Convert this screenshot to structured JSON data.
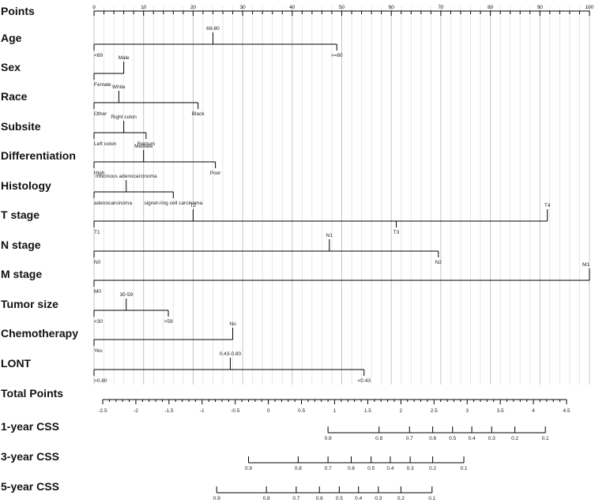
{
  "chart_data": {
    "type": "nomogram",
    "points_axis": {
      "label": "Points",
      "range": [
        0,
        100
      ],
      "ticks": [
        "0",
        "10",
        "20",
        "30",
        "40",
        "50",
        "60",
        "70",
        "80",
        "90",
        "100"
      ]
    },
    "variables": [
      {
        "label": "Age",
        "min_points": 0,
        "max_points": 49,
        "levels": [
          {
            "name": "<69",
            "points": 0,
            "side": "below"
          },
          {
            "name": "69-80",
            "points": 24,
            "side": "above"
          },
          {
            "name": ">=80",
            "points": 49,
            "side": "below"
          }
        ]
      },
      {
        "label": "Sex",
        "min_points": 0,
        "max_points": 6,
        "levels": [
          {
            "name": "Female",
            "points": 0,
            "side": "below"
          },
          {
            "name": "Male",
            "points": 6,
            "side": "above"
          }
        ]
      },
      {
        "label": "Race",
        "min_points": 0,
        "max_points": 21,
        "levels": [
          {
            "name": "Other",
            "points": 0,
            "side": "below"
          },
          {
            "name": "White",
            "points": 5,
            "side": "above"
          },
          {
            "name": "Black",
            "points": 21,
            "side": "below"
          }
        ]
      },
      {
        "label": "Subsite",
        "min_points": 0,
        "max_points": 10.5,
        "levels": [
          {
            "name": "Left colon",
            "points": 0,
            "side": "below"
          },
          {
            "name": "Right colon",
            "points": 6,
            "side": "above"
          },
          {
            "name": "Rectum",
            "points": 10.5,
            "side": "below"
          }
        ]
      },
      {
        "label": "Differentiation",
        "min_points": 0,
        "max_points": 24.5,
        "levels": [
          {
            "name": "High",
            "points": 0,
            "side": "below"
          },
          {
            "name": "Mediate",
            "points": 10,
            "side": "above"
          },
          {
            "name": "Poor",
            "points": 24.5,
            "side": "below"
          }
        ]
      },
      {
        "label": "Histology",
        "min_points": 0,
        "max_points": 16,
        "levels": [
          {
            "name": "adenocarcinoma",
            "points": 0,
            "side": "below"
          },
          {
            "name": "mucinous adenocarcinoma",
            "points": 6.5,
            "side": "above"
          },
          {
            "name": "signet-ring cell carcinoma",
            "points": 16,
            "side": "below"
          }
        ]
      },
      {
        "label": "T stage",
        "min_points": 0,
        "max_points": 91.5,
        "levels": [
          {
            "name": "T1",
            "points": 0,
            "side": "below"
          },
          {
            "name": "T2",
            "points": 20,
            "side": "above"
          },
          {
            "name": "T3",
            "points": 61,
            "side": "below"
          },
          {
            "name": "T4",
            "points": 91.5,
            "side": "above"
          }
        ]
      },
      {
        "label": "N stage",
        "min_points": 0,
        "max_points": 69.5,
        "levels": [
          {
            "name": "N0",
            "points": 0,
            "side": "below"
          },
          {
            "name": "N1",
            "points": 47.5,
            "side": "above"
          },
          {
            "name": "N2",
            "points": 69.5,
            "side": "below"
          }
        ]
      },
      {
        "label": "M stage",
        "min_points": 0,
        "max_points": 100,
        "levels": [
          {
            "name": "M0",
            "points": 0,
            "side": "below"
          },
          {
            "name": "M1",
            "points": 100,
            "side": "above"
          }
        ]
      },
      {
        "label": "Tumor size",
        "min_points": 0,
        "max_points": 15,
        "levels": [
          {
            "name": "<30",
            "points": 0,
            "side": "below"
          },
          {
            "name": "30-59",
            "points": 6.5,
            "side": "above"
          },
          {
            "name": ">59",
            "points": 15,
            "side": "below"
          }
        ]
      },
      {
        "label": "Chemotherapy",
        "min_points": 0,
        "max_points": 28,
        "levels": [
          {
            "name": "Yes",
            "points": 0,
            "side": "below"
          },
          {
            "name": "No",
            "points": 28,
            "side": "above"
          }
        ]
      },
      {
        "label": "LONT",
        "min_points": 0,
        "max_points": 54.5,
        "levels": [
          {
            "name": ">0.80",
            "points": 0,
            "side": "below"
          },
          {
            "name": "0.43-0.80",
            "points": 27.5,
            "side": "above"
          },
          {
            "name": "<0.43",
            "points": 54.5,
            "side": "below"
          }
        ]
      }
    ],
    "total_points_axis": {
      "label": "Total Points",
      "range": [
        -2.5,
        4.5
      ],
      "ticks": [
        "-2.5",
        "-2",
        "-1.5",
        "-1",
        "-0.5",
        "0",
        "0.5",
        "1",
        "1.5",
        "2",
        "2.5",
        "3",
        "3.5",
        "4",
        "4.5"
      ]
    },
    "survival_axes": [
      {
        "label": "1-year CSS",
        "ticks": [
          {
            "value": "0.9",
            "total_points": 0.9
          },
          {
            "value": "0.8",
            "total_points": 1.67
          },
          {
            "value": "0.7",
            "total_points": 2.13
          },
          {
            "value": "0.6",
            "total_points": 2.48
          },
          {
            "value": "0.5",
            "total_points": 2.78
          },
          {
            "value": "0.4",
            "total_points": 3.07
          },
          {
            "value": "0.3",
            "total_points": 3.37
          },
          {
            "value": "0.2",
            "total_points": 3.72
          },
          {
            "value": "0.1",
            "total_points": 4.18
          }
        ]
      },
      {
        "label": "3-year CSS",
        "ticks": [
          {
            "value": "0.9",
            "total_points": -0.3
          },
          {
            "value": "0.8",
            "total_points": 0.45
          },
          {
            "value": "0.7",
            "total_points": 0.9
          },
          {
            "value": "0.6",
            "total_points": 1.25
          },
          {
            "value": "0.5",
            "total_points": 1.55
          },
          {
            "value": "0.4",
            "total_points": 1.84
          },
          {
            "value": "0.3",
            "total_points": 2.14
          },
          {
            "value": "0.2",
            "total_points": 2.48
          },
          {
            "value": "0.1",
            "total_points": 2.95
          }
        ]
      },
      {
        "label": "5-year CSS",
        "ticks": [
          {
            "value": "0.9",
            "total_points": -0.78
          },
          {
            "value": "0.8",
            "total_points": -0.03
          },
          {
            "value": "0.7",
            "total_points": 0.42
          },
          {
            "value": "0.6",
            "total_points": 0.77
          },
          {
            "value": "0.5",
            "total_points": 1.07
          },
          {
            "value": "0.4",
            "total_points": 1.36
          },
          {
            "value": "0.3",
            "total_points": 1.66
          },
          {
            "value": "0.2",
            "total_points": 2.0
          },
          {
            "value": "0.1",
            "total_points": 2.47
          }
        ]
      }
    ],
    "grid": true
  }
}
